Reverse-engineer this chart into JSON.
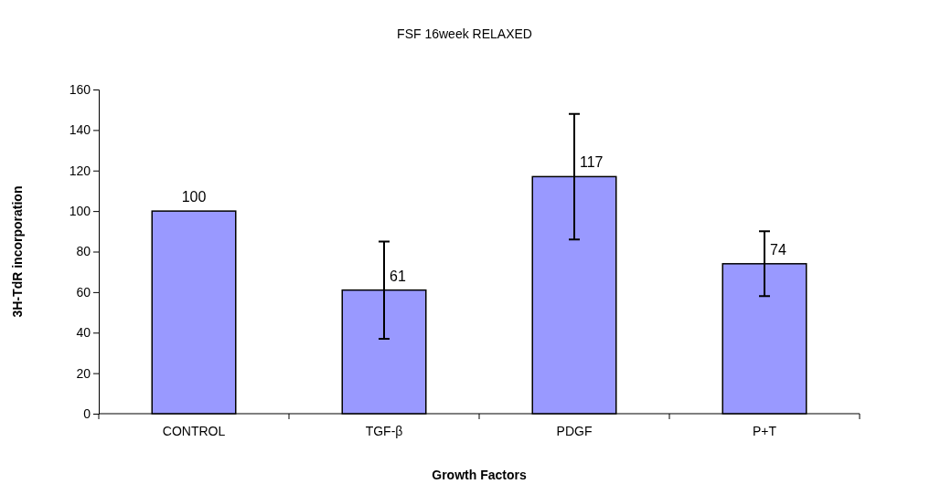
{
  "chart_data": {
    "type": "bar",
    "title": "FSF 16week RELAXED",
    "xlabel": "Growth Factors",
    "ylabel": "3H-TdR  incorporation",
    "categories": [
      "CONTROL",
      "TGF-β",
      "PDGF",
      "P+T"
    ],
    "values": [
      100,
      61,
      117,
      74
    ],
    "errors": [
      null,
      24,
      31,
      16
    ],
    "color": "#9999ff",
    "data_labels": true,
    "ylim": [
      0,
      160
    ],
    "yticks": [
      0,
      20,
      40,
      60,
      80,
      100,
      120,
      140,
      160
    ],
    "grid": false
  }
}
